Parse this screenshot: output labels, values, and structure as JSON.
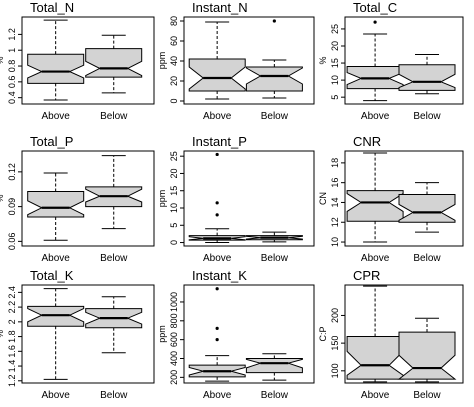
{
  "chart_data": [
    {
      "type": "boxplot",
      "title": "Total_N",
      "ylabel": "%",
      "categories": [
        "Above",
        "Below"
      ],
      "yticks": [
        0.4,
        0.6,
        0.8,
        1.0,
        1.2
      ],
      "ylim": [
        0.32,
        1.42
      ],
      "boxes": [
        {
          "whisker_low": 0.37,
          "q1": 0.58,
          "median": 0.73,
          "q3": 0.95,
          "whisker_high": 1.38,
          "notch_low": 0.65,
          "notch_high": 0.81,
          "outliers": []
        },
        {
          "whisker_low": 0.46,
          "q1": 0.66,
          "median": 0.77,
          "q3": 1.02,
          "whisker_high": 1.19,
          "notch_low": 0.68,
          "notch_high": 0.86,
          "outliers": []
        }
      ]
    },
    {
      "type": "boxplot",
      "title": "Instant_N",
      "ylabel": "ppm",
      "categories": [
        "Above",
        "Below"
      ],
      "yticks": [
        0,
        20,
        40,
        60,
        80
      ],
      "ylim": [
        -3,
        84
      ],
      "boxes": [
        {
          "whisker_low": 2,
          "q1": 10,
          "median": 23,
          "q3": 42,
          "whisker_high": 79,
          "notch_low": 12,
          "notch_high": 34,
          "outliers": []
        },
        {
          "whisker_low": 3,
          "q1": 10,
          "median": 25,
          "q3": 34,
          "whisker_high": 41,
          "notch_low": 17,
          "notch_high": 33,
          "outliers": [
            80
          ]
        }
      ]
    },
    {
      "type": "boxplot",
      "title": "Total_C",
      "ylabel": "%",
      "categories": [
        "Above",
        "Below"
      ],
      "yticks": [
        5,
        10,
        15,
        20,
        25
      ],
      "ylim": [
        3,
        28.5
      ],
      "boxes": [
        {
          "whisker_low": 4,
          "q1": 7.5,
          "median": 10.5,
          "q3": 14,
          "whisker_high": 23.5,
          "notch_low": 8.7,
          "notch_high": 12.2,
          "outliers": [
            27
          ]
        },
        {
          "whisker_low": 6,
          "q1": 7,
          "median": 9.5,
          "q3": 14.5,
          "whisker_high": 17.5,
          "notch_low": 7.8,
          "notch_high": 11.7,
          "outliers": []
        }
      ]
    },
    {
      "type": "boxplot",
      "title": "Total_P",
      "ylabel": "%",
      "categories": [
        "Above",
        "Below"
      ],
      "yticks": [
        0.06,
        0.09,
        0.12
      ],
      "ylim": [
        0.056,
        0.138
      ],
      "boxes": [
        {
          "whisker_low": 0.061,
          "q1": 0.081,
          "median": 0.089,
          "q3": 0.103,
          "whisker_high": 0.119,
          "notch_low": 0.083,
          "notch_high": 0.095,
          "outliers": []
        },
        {
          "whisker_low": 0.071,
          "q1": 0.09,
          "median": 0.099,
          "q3": 0.107,
          "whisker_high": 0.134,
          "notch_low": 0.094,
          "notch_high": 0.105,
          "outliers": []
        }
      ]
    },
    {
      "type": "boxplot",
      "title": "Instant_P",
      "ylabel": "ppm",
      "categories": [
        "Above",
        "Below"
      ],
      "yticks": [
        0,
        5,
        10,
        15,
        20,
        25
      ],
      "ylim": [
        -1,
        26.5
      ],
      "boxes": [
        {
          "whisker_low": 0,
          "q1": 0.7,
          "median": 1.2,
          "q3": 2.0,
          "whisker_high": 4.0,
          "notch_low": 0.8,
          "notch_high": 1.7,
          "outliers": [
            8,
            11.5,
            25.5
          ]
        },
        {
          "whisker_low": 0.2,
          "q1": 0.8,
          "median": 1.4,
          "q3": 2.0,
          "whisker_high": 3.0,
          "notch_low": 1.0,
          "notch_high": 1.8,
          "outliers": []
        }
      ]
    },
    {
      "type": "boxplot",
      "title": "CNR",
      "ylabel": "CN",
      "categories": [
        "Above",
        "Below"
      ],
      "yticks": [
        10,
        12,
        14,
        16,
        18
      ],
      "ylim": [
        9.6,
        19.2
      ],
      "boxes": [
        {
          "whisker_low": 10.0,
          "q1": 12.1,
          "median": 14.0,
          "q3": 15.2,
          "whisker_high": 19.0,
          "notch_low": 13.1,
          "notch_high": 14.9,
          "outliers": []
        },
        {
          "whisker_low": 11.0,
          "q1": 12.0,
          "median": 13.0,
          "q3": 14.8,
          "whisker_high": 16.0,
          "notch_low": 12.2,
          "notch_high": 13.8,
          "outliers": []
        }
      ]
    },
    {
      "type": "boxplot",
      "title": "Total_K",
      "ylabel": "%",
      "categories": [
        "Above",
        "Below"
      ],
      "yticks": [
        1.2,
        1.4,
        1.6,
        1.8,
        2.0,
        2.2,
        2.4
      ],
      "ylim": [
        1.17,
        2.5
      ],
      "boxes": [
        {
          "whisker_low": 1.22,
          "q1": 1.94,
          "median": 2.09,
          "q3": 2.21,
          "whisker_high": 2.45,
          "notch_low": 2.0,
          "notch_high": 2.18,
          "outliers": []
        },
        {
          "whisker_low": 1.58,
          "q1": 1.92,
          "median": 2.05,
          "q3": 2.18,
          "whisker_high": 2.34,
          "notch_low": 1.97,
          "notch_high": 2.13,
          "outliers": []
        }
      ]
    },
    {
      "type": "boxplot",
      "title": "Instant_K",
      "ylabel": "ppm",
      "categories": [
        "Above",
        "Below"
      ],
      "yticks": [
        200,
        400,
        600,
        800,
        1000
      ],
      "ylim": [
        140,
        1180
      ],
      "boxes": [
        {
          "whisker_low": 160,
          "q1": 205,
          "median": 265,
          "q3": 330,
          "whisker_high": 430,
          "notch_low": 225,
          "notch_high": 305,
          "outliers": [
            600,
            720,
            1140
          ]
        },
        {
          "whisker_low": 170,
          "q1": 250,
          "median": 350,
          "q3": 400,
          "whisker_high": 450,
          "notch_low": 300,
          "notch_high": 390,
          "outliers": []
        }
      ]
    },
    {
      "type": "boxplot",
      "title": "CPR",
      "ylabel": "C:P",
      "categories": [
        "Above",
        "Below"
      ],
      "yticks": [
        100,
        150,
        200
      ],
      "ylim": [
        78,
        255
      ],
      "boxes": [
        {
          "whisker_low": 80,
          "q1": 85,
          "median": 110,
          "q3": 162,
          "whisker_high": 253,
          "notch_low": 92,
          "notch_high": 135,
          "outliers": []
        },
        {
          "whisker_low": 80,
          "q1": 85,
          "median": 105,
          "q3": 170,
          "whisker_high": 195,
          "notch_low": 85,
          "notch_high": 128,
          "outliers": []
        }
      ]
    }
  ],
  "colors": {
    "box_fill": "#d3d3d3",
    "stroke": "#000000",
    "background": "#ffffff"
  }
}
